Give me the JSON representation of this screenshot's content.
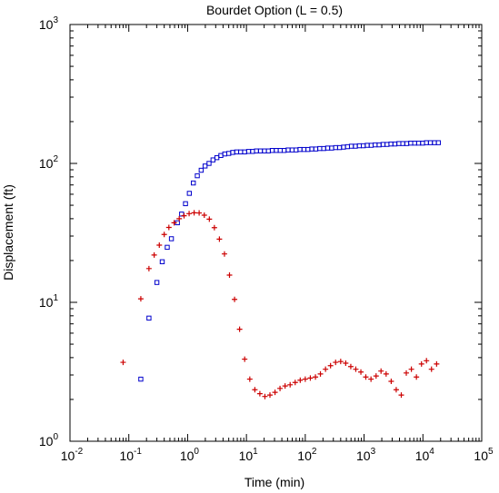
{
  "chart_data": {
    "type": "scatter",
    "title": "Bourdet Option (L = 0.5)",
    "xlabel": "Time (min)",
    "ylabel": "Displacement (ft)",
    "xscale": "log",
    "yscale": "log",
    "xlim": [
      0.01,
      100000
    ],
    "ylim": [
      1,
      1000
    ],
    "grid": false,
    "legend": "none",
    "x_ticks": [
      {
        "base": "10",
        "exp": "-2"
      },
      {
        "base": "10",
        "exp": "-1"
      },
      {
        "base": "10",
        "exp": "0"
      },
      {
        "base": "10",
        "exp": "1"
      },
      {
        "base": "10",
        "exp": "2"
      },
      {
        "base": "10",
        "exp": "3"
      },
      {
        "base": "10",
        "exp": "4"
      },
      {
        "base": "10",
        "exp": "5"
      }
    ],
    "y_ticks": [
      {
        "base": "10",
        "exp": "0"
      },
      {
        "base": "10",
        "exp": "1"
      },
      {
        "base": "10",
        "exp": "2"
      },
      {
        "base": "10",
        "exp": "3"
      }
    ],
    "series": [
      {
        "marker": "square",
        "color": "#0000cc",
        "points": [
          [
            0.16,
            2.8
          ],
          [
            0.22,
            7.7
          ],
          [
            0.3,
            13.9
          ],
          [
            0.37,
            19.6
          ],
          [
            0.45,
            24.9
          ],
          [
            0.53,
            28.7
          ],
          [
            0.67,
            37.4
          ],
          [
            0.79,
            43.2
          ],
          [
            0.92,
            51.3
          ],
          [
            1.07,
            60.9
          ],
          [
            1.25,
            72.3
          ],
          [
            1.46,
            81.5
          ],
          [
            1.7,
            89.3
          ],
          [
            1.98,
            95.8
          ],
          [
            2.31,
            100
          ],
          [
            2.7,
            106
          ],
          [
            3.14,
            110
          ],
          [
            3.67,
            114
          ],
          [
            4.28,
            117
          ],
          [
            5.0,
            118
          ],
          [
            5.84,
            120
          ],
          [
            6.82,
            121
          ],
          [
            7.96,
            121
          ],
          [
            9.3,
            121
          ],
          [
            10.9,
            122
          ],
          [
            12.7,
            122
          ],
          [
            14.8,
            123
          ],
          [
            17.3,
            123
          ],
          [
            20.2,
            123
          ],
          [
            23.6,
            123
          ],
          [
            27.5,
            124
          ],
          [
            32.1,
            124
          ],
          [
            37.5,
            124
          ],
          [
            43.8,
            124
          ],
          [
            51.1,
            125
          ],
          [
            59.7,
            125
          ],
          [
            69.7,
            125
          ],
          [
            81.3,
            126
          ],
          [
            94.9,
            126
          ],
          [
            111,
            126
          ],
          [
            129,
            127
          ],
          [
            151,
            127
          ],
          [
            176,
            128
          ],
          [
            206,
            128
          ],
          [
            240,
            129
          ],
          [
            281,
            129
          ],
          [
            328,
            130
          ],
          [
            383,
            130
          ],
          [
            447,
            131
          ],
          [
            522,
            132
          ],
          [
            609,
            133
          ],
          [
            711,
            133
          ],
          [
            830,
            134
          ],
          [
            969,
            134
          ],
          [
            1130,
            135
          ],
          [
            1320,
            135
          ],
          [
            1540,
            136
          ],
          [
            1800,
            136
          ],
          [
            2100,
            137
          ],
          [
            2450,
            137
          ],
          [
            2860,
            138
          ],
          [
            3340,
            138
          ],
          [
            3900,
            139
          ],
          [
            4550,
            139
          ],
          [
            5310,
            139
          ],
          [
            6200,
            140
          ],
          [
            7240,
            140
          ],
          [
            8450,
            140
          ],
          [
            9870,
            140
          ],
          [
            11500,
            141
          ],
          [
            13400,
            141
          ],
          [
            15700,
            141
          ],
          [
            18300,
            141
          ]
        ]
      },
      {
        "marker": "plus",
        "color": "#cc0000",
        "points": [
          [
            0.08,
            3.7
          ],
          [
            0.16,
            10.6
          ],
          [
            0.22,
            17.5
          ],
          [
            0.27,
            21.9
          ],
          [
            0.33,
            25.8
          ],
          [
            0.4,
            30.8
          ],
          [
            0.48,
            34.6
          ],
          [
            0.59,
            37.4
          ],
          [
            0.72,
            40.0
          ],
          [
            0.87,
            42.0
          ],
          [
            1.06,
            43.5
          ],
          [
            1.29,
            44.1
          ],
          [
            1.57,
            44.0
          ],
          [
            1.92,
            42.4
          ],
          [
            2.34,
            39.7
          ],
          [
            2.85,
            34.5
          ],
          [
            3.47,
            28.5
          ],
          [
            4.23,
            22.3
          ],
          [
            5.15,
            15.7
          ],
          [
            6.28,
            10.5
          ],
          [
            7.65,
            6.4
          ],
          [
            9.33,
            3.9
          ],
          [
            11.4,
            2.8
          ],
          [
            13.9,
            2.35
          ],
          [
            16.9,
            2.2
          ],
          [
            20.6,
            2.1
          ],
          [
            25.1,
            2.15
          ],
          [
            30.6,
            2.25
          ],
          [
            37.2,
            2.4
          ],
          [
            45.4,
            2.5
          ],
          [
            55.3,
            2.55
          ],
          [
            67.4,
            2.65
          ],
          [
            82.1,
            2.75
          ],
          [
            100,
            2.8
          ],
          [
            122,
            2.85
          ],
          [
            149,
            2.9
          ],
          [
            181,
            3.05
          ],
          [
            221,
            3.3
          ],
          [
            269,
            3.5
          ],
          [
            328,
            3.7
          ],
          [
            400,
            3.75
          ],
          [
            487,
            3.65
          ],
          [
            594,
            3.45
          ],
          [
            723,
            3.3
          ],
          [
            882,
            3.15
          ],
          [
            1070,
            2.9
          ],
          [
            1310,
            2.8
          ],
          [
            1600,
            2.95
          ],
          [
            1940,
            3.2
          ],
          [
            2370,
            3.05
          ],
          [
            2890,
            2.7
          ],
          [
            3520,
            2.35
          ],
          [
            4290,
            2.15
          ],
          [
            5220,
            3.1
          ],
          [
            6370,
            3.3
          ],
          [
            7760,
            2.9
          ],
          [
            9460,
            3.6
          ],
          [
            11500,
            3.8
          ],
          [
            14000,
            3.3
          ],
          [
            17100,
            3.6
          ]
        ]
      }
    ]
  }
}
